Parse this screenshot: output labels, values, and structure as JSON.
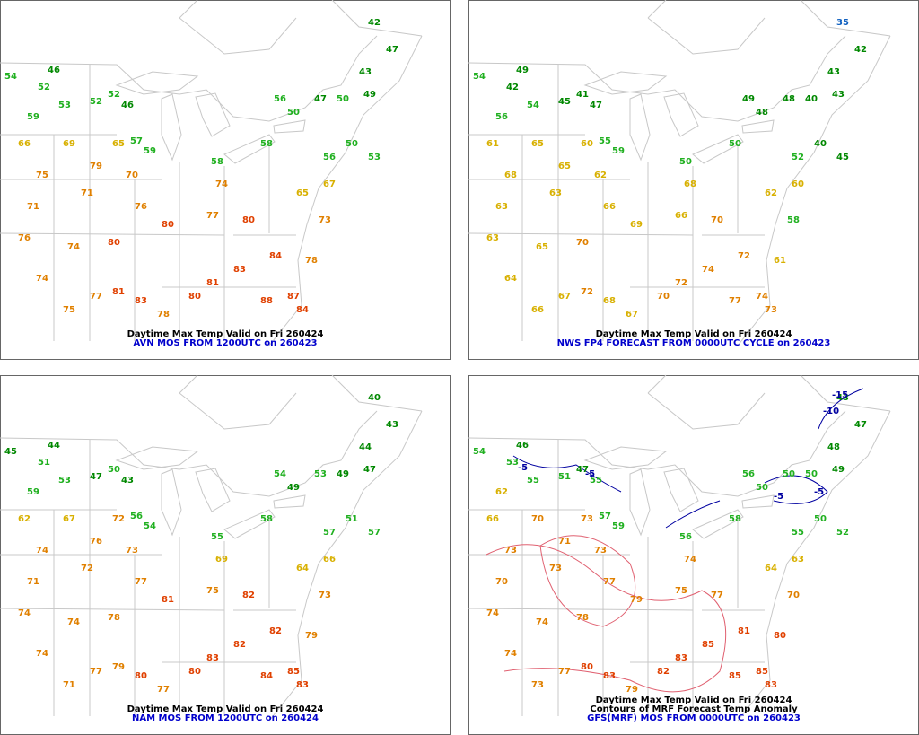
{
  "panels": [
    {
      "captions": [
        "Daytime Max Temp Valid on Fri 260424",
        "AVN MOS FROM 1200UTC on 260423"
      ],
      "values": [
        54,
        52,
        46,
        53,
        52,
        52,
        46,
        59,
        66,
        69,
        65,
        57,
        59,
        75,
        79,
        70,
        71,
        71,
        76,
        80,
        76,
        74,
        80,
        74,
        77,
        81,
        83,
        80,
        81,
        83,
        88,
        87,
        84,
        84,
        80,
        77,
        74,
        58,
        58,
        56,
        50,
        65,
        67,
        47,
        50,
        49,
        50,
        53,
        43,
        42,
        47,
        56,
        73,
        78,
        78,
        75
      ]
    },
    {
      "captions": [
        "Daytime Max Temp Valid on Fri 260424",
        "NWS FP4 FORECAST FROM 0000UTC CYCLE on 260423"
      ],
      "values": [
        54,
        42,
        49,
        54,
        45,
        41,
        47,
        56,
        61,
        65,
        60,
        55,
        59,
        68,
        65,
        62,
        63,
        63,
        66,
        69,
        63,
        65,
        70,
        64,
        67,
        72,
        68,
        70,
        72,
        74,
        77,
        74,
        73,
        72,
        70,
        66,
        68,
        50,
        50,
        49,
        48,
        62,
        60,
        48,
        40,
        43,
        40,
        45,
        43,
        35,
        42,
        52,
        58,
        61,
        67,
        66
      ]
    },
    {
      "captions": [
        "Daytime Max Temp Valid on Fri 260424",
        "NAM MOS FROM 1200UTC on 260424"
      ],
      "values": [
        45,
        51,
        44,
        53,
        47,
        50,
        43,
        59,
        62,
        67,
        72,
        56,
        54,
        74,
        76,
        73,
        71,
        72,
        77,
        81,
        74,
        74,
        78,
        74,
        77,
        79,
        80,
        80,
        83,
        82,
        84,
        85,
        83,
        82,
        82,
        75,
        69,
        55,
        58,
        54,
        49,
        64,
        66,
        53,
        49,
        47,
        51,
        57,
        44,
        40,
        43,
        57,
        73,
        79,
        77,
        71
      ]
    },
    {
      "captions": [
        "Daytime Max Temp Valid on Fri 260424",
        "Contours of MRF Forecast Temp Anomaly",
        "GFS(MRF) MOS FROM 0000UTC on 260423"
      ],
      "values": [
        54,
        53,
        46,
        55,
        51,
        47,
        55,
        62,
        66,
        70,
        73,
        57,
        59,
        73,
        71,
        73,
        70,
        73,
        77,
        79,
        74,
        74,
        78,
        74,
        77,
        80,
        83,
        82,
        83,
        85,
        85,
        85,
        83,
        81,
        77,
        75,
        74,
        56,
        58,
        56,
        50,
        64,
        63,
        50,
        50,
        49,
        50,
        52,
        48,
        43,
        47,
        55,
        70,
        80,
        79,
        73
      ],
      "contour_labels": [
        -5,
        -5,
        -5,
        -5,
        -10,
        -15
      ]
    }
  ]
}
